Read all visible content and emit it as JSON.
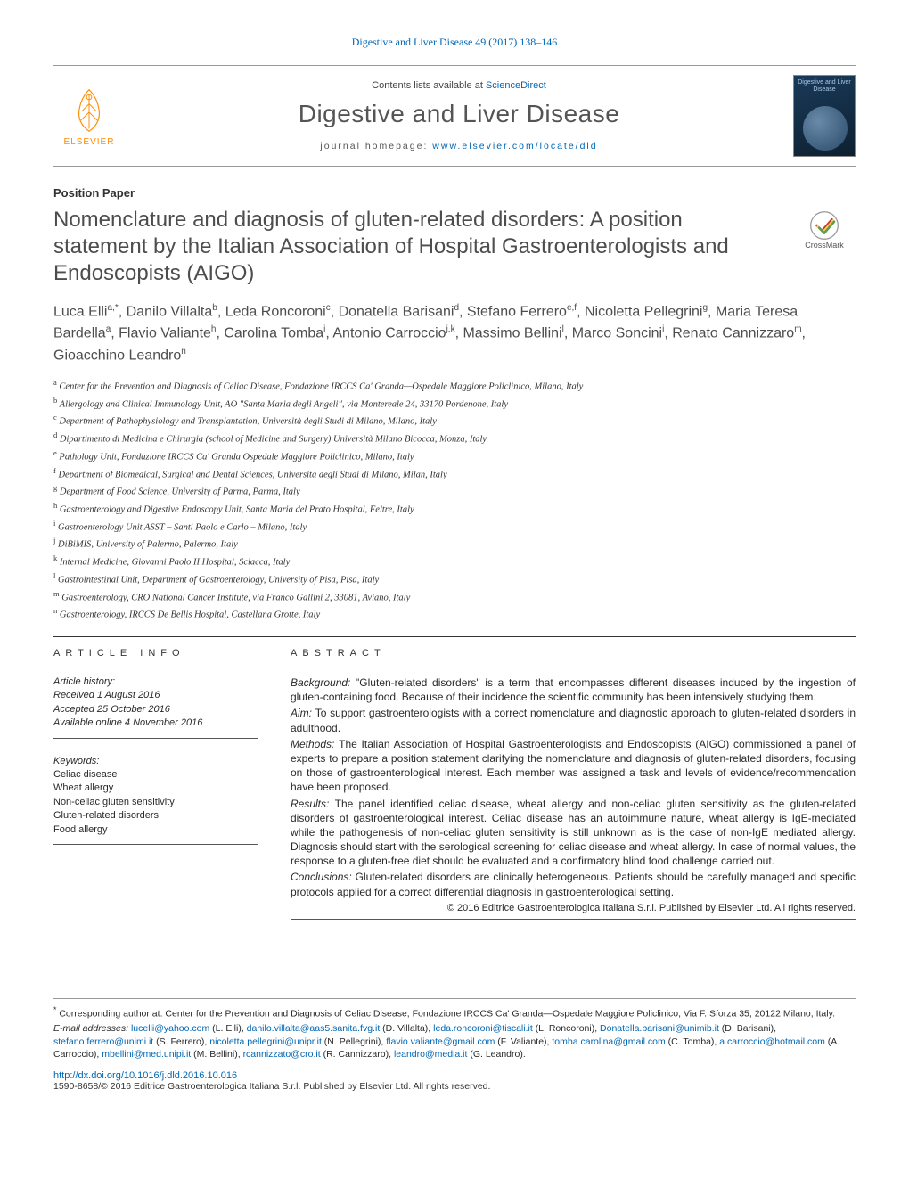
{
  "journal_ref_text": "Digestive and Liver Disease 49 (2017) 138–146",
  "journal_ref_link": "Digestive and Liver Disease 49 (2017) 138–146",
  "header": {
    "contents_prefix": "Contents lists available at ",
    "contents_link": "ScienceDirect",
    "journal_title": "Digestive and Liver Disease",
    "homepage_prefix": "journal homepage: ",
    "homepage_link": "www.elsevier.com/locate/dld",
    "elsevier_label": "ELSEVIER",
    "cover_label": "Digestive and Liver Disease"
  },
  "crossmark_label": "CrossMark",
  "article_type": "Position Paper",
  "title": "Nomenclature and diagnosis of gluten-related disorders: A position statement by the Italian Association of Hospital Gastroenterologists and Endoscopists (AIGO)",
  "authors_html": "Luca Elli<sup>a,*</sup>, Danilo Villalta<sup>b</sup>, Leda Roncoroni<sup>c</sup>, Donatella Barisani<sup>d</sup>, Stefano Ferrero<sup>e,f</sup>, Nicoletta Pellegrini<sup>g</sup>, Maria Teresa Bardella<sup>a</sup>, Flavio Valiante<sup>h</sup>, Carolina Tomba<sup>i</sup>, Antonio Carroccio<sup>j,k</sup>, Massimo Bellini<sup>l</sup>, Marco Soncini<sup>i</sup>, Renato Cannizzaro<sup>m</sup>, Gioacchino Leandro<sup>n</sup>",
  "affiliations": [
    {
      "sup": "a",
      "text": "Center for the Prevention and Diagnosis of Celiac Disease, Fondazione IRCCS Ca' Granda—Ospedale Maggiore Policlinico, Milano, Italy"
    },
    {
      "sup": "b",
      "text": "Allergology and Clinical Immunology Unit, AO \"Santa Maria degli Angeli\", via Montereale 24, 33170 Pordenone, Italy"
    },
    {
      "sup": "c",
      "text": "Department of Pathophysiology and Transplantation, Università degli Studi di Milano, Milano, Italy"
    },
    {
      "sup": "d",
      "text": "Dipartimento di Medicina e Chirurgia (school of Medicine and Surgery) Università Milano Bicocca, Monza, Italy"
    },
    {
      "sup": "e",
      "text": "Pathology Unit, Fondazione IRCCS Ca' Granda Ospedale Maggiore Policlinico, Milano, Italy"
    },
    {
      "sup": "f",
      "text": "Department of Biomedical, Surgical and Dental Sciences, Università degli Studi di Milano, Milan, Italy"
    },
    {
      "sup": "g",
      "text": "Department of Food Science, University of Parma, Parma, Italy"
    },
    {
      "sup": "h",
      "text": "Gastroenterology and Digestive Endoscopy Unit, Santa Maria del Prato Hospital, Feltre, Italy"
    },
    {
      "sup": "i",
      "text": "Gastroenterology Unit ASST – Santi Paolo e Carlo – Milano, Italy"
    },
    {
      "sup": "j",
      "text": "DiBiMIS, University of Palermo, Palermo, Italy"
    },
    {
      "sup": "k",
      "text": "Internal Medicine, Giovanni Paolo II Hospital, Sciacca, Italy"
    },
    {
      "sup": "l",
      "text": "Gastrointestinal Unit, Department of Gastroenterology, University of Pisa, Pisa, Italy"
    },
    {
      "sup": "m",
      "text": "Gastroenterology, CRO National Cancer Institute, via Franco Gallini 2, 33081, Aviano, Italy"
    },
    {
      "sup": "n",
      "text": "Gastroenterology, IRCCS De Bellis Hospital, Castellana Grotte, Italy"
    }
  ],
  "article_info": {
    "heading": "article info",
    "history_label": "Article history:",
    "received": "Received 1 August 2016",
    "accepted": "Accepted 25 October 2016",
    "online": "Available online 4 November 2016",
    "keywords_label": "Keywords:",
    "keywords": [
      "Celiac disease",
      "Wheat allergy",
      "Non-celiac gluten sensitivity",
      "Gluten-related disorders",
      "Food allergy"
    ]
  },
  "abstract": {
    "heading": "abstract",
    "paragraphs": [
      {
        "label": "Background:",
        "text": "\"Gluten-related disorders\" is a term that encompasses different diseases induced by the ingestion of gluten-containing food. Because of their incidence the scientific community has been intensively studying them."
      },
      {
        "label": "Aim:",
        "text": "To support gastroenterologists with a correct nomenclature and diagnostic approach to gluten-related disorders in adulthood."
      },
      {
        "label": "Methods:",
        "text": "The Italian Association of Hospital Gastroenterologists and Endoscopists (AIGO) commissioned a panel of experts to prepare a position statement clarifying the nomenclature and diagnosis of gluten-related disorders, focusing on those of gastroenterological interest. Each member was assigned a task and levels of evidence/recommendation have been proposed."
      },
      {
        "label": "Results:",
        "text": "The panel identified celiac disease, wheat allergy and non-celiac gluten sensitivity as the gluten-related disorders of gastroenterological interest. Celiac disease has an autoimmune nature, wheat allergy is IgE-mediated while the pathogenesis of non-celiac gluten sensitivity is still unknown as is the case of non-IgE mediated allergy. Diagnosis should start with the serological screening for celiac disease and wheat allergy. In case of normal values, the response to a gluten-free diet should be evaluated and a confirmatory blind food challenge carried out."
      },
      {
        "label": "Conclusions:",
        "text": "Gluten-related disorders are clinically heterogeneous. Patients should be carefully managed and specific protocols applied for a correct differential diagnosis in gastroenterological setting."
      }
    ],
    "copyright": "© 2016 Editrice Gastroenterologica Italiana S.r.l. Published by Elsevier Ltd. All rights reserved."
  },
  "corresponding": {
    "marker": "*",
    "text": "Corresponding author at: Center for the Prevention and Diagnosis of Celiac Disease, Fondazione IRCCS Ca' Granda—Ospedale Maggiore Policlinico, Via F. Sforza 35, 20122 Milano, Italy."
  },
  "emails": {
    "label": "E-mail addresses:",
    "list": [
      {
        "email": "lucelli@yahoo.com",
        "name": "(L. Elli)"
      },
      {
        "email": "danilo.villalta@aas5.sanita.fvg.it",
        "name": "(D. Villalta)"
      },
      {
        "email": "leda.roncoroni@tiscali.it",
        "name": "(L. Roncoroni)"
      },
      {
        "email": "Donatella.barisani@unimib.it",
        "name": "(D. Barisani)"
      },
      {
        "email": "stefano.ferrero@unimi.it",
        "name": "(S. Ferrero)"
      },
      {
        "email": "nicoletta.pellegrini@unipr.it",
        "name": "(N. Pellegrini)"
      },
      {
        "email": "flavio.valiante@gmail.com",
        "name": "(F. Valiante)"
      },
      {
        "email": "tomba.carolina@gmail.com",
        "name": "(C. Tomba)"
      },
      {
        "email": "a.carroccio@hotmail.com",
        "name": "(A. Carroccio)"
      },
      {
        "email": "mbellini@med.unipi.it",
        "name": "(M. Bellini)"
      },
      {
        "email": "rcannizzato@cro.it",
        "name": "(R. Cannizzaro)"
      },
      {
        "email": "leandro@media.it",
        "name": "(G. Leandro)"
      }
    ]
  },
  "doi": "http://dx.doi.org/10.1016/j.dld.2016.10.016",
  "issn_line": "1590-8658/© 2016 Editrice Gastroenterologica Italiana S.r.l. Published by Elsevier Ltd. All rights reserved.",
  "colors": {
    "link": "#0066b3",
    "elsevier_orange": "#ff8b00",
    "heading_gray": "#4d4d4d",
    "cover_bg_top": "#1a3a5a",
    "cover_bg_bottom": "#0d2030"
  }
}
